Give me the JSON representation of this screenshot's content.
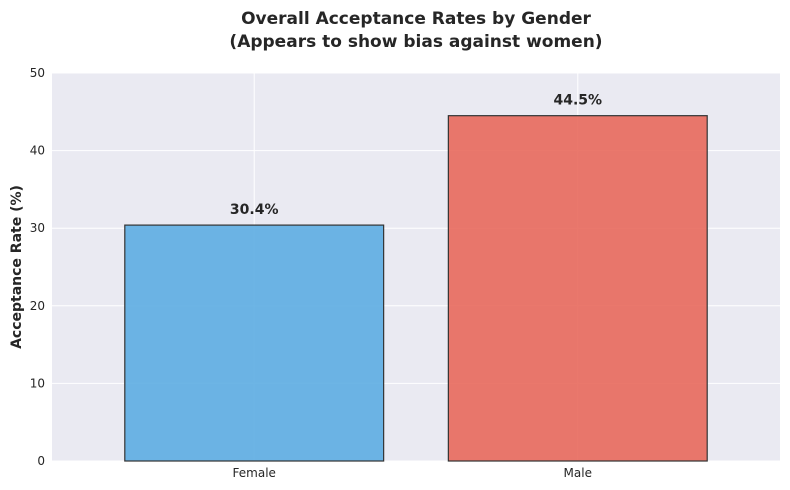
{
  "chart_data": {
    "type": "bar",
    "title": "Overall Acceptance Rates by Gender",
    "subtitle": "(Appears to show bias against women)",
    "xlabel": "",
    "ylabel": "Acceptance Rate (%)",
    "categories": [
      "Female",
      "Male"
    ],
    "values": [
      30.4,
      44.5
    ],
    "data_labels": [
      "30.4%",
      "44.5%"
    ],
    "bar_colors": [
      "#5DADE2",
      "#E8695C"
    ],
    "ylim": [
      0,
      50
    ],
    "yticks": [
      0,
      10,
      20,
      30,
      40,
      50
    ],
    "ytick_labels": [
      "0",
      "10",
      "20",
      "30",
      "40",
      "50"
    ],
    "grid": true,
    "background": "#EAEAF2"
  }
}
